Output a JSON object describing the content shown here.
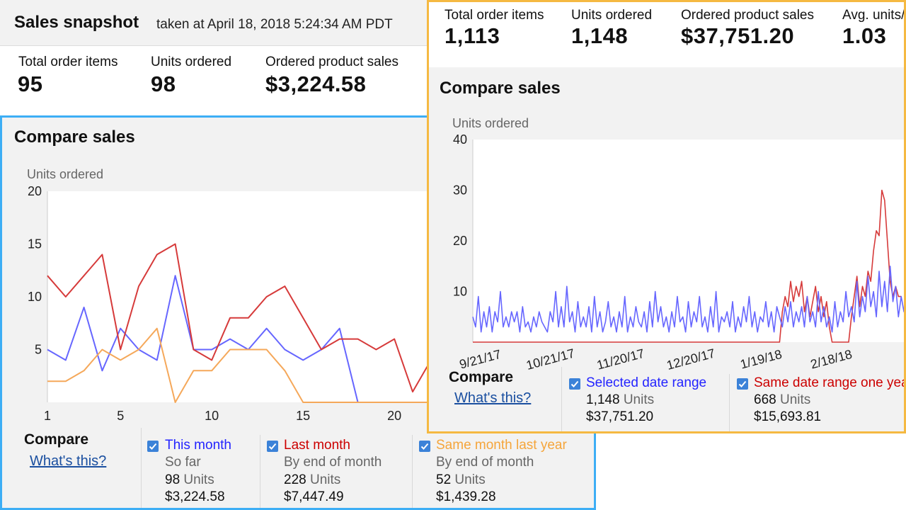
{
  "left": {
    "snapshot_title": "Sales snapshot",
    "snapshot_subtitle": "taken at April 18, 2018 5:24:34 AM PDT",
    "metrics": [
      {
        "label": "Total order items",
        "value": "95"
      },
      {
        "label": "Units ordered",
        "value": "98"
      },
      {
        "label": "Ordered product sales",
        "value": "$3,224.58"
      }
    ],
    "compare_title": "Compare sales",
    "compare_label": "Compare",
    "whats_this": "What's this?",
    "series_options": [
      {
        "label": "This month",
        "sub": "So far",
        "units": "98",
        "units_word": "Units",
        "sales": "$3,224.58",
        "color": "#2424ff"
      },
      {
        "label": "Last month",
        "sub": "By end of month",
        "units": "228",
        "units_word": "Units",
        "sales": "$7,447.49",
        "color": "#cc0000"
      },
      {
        "label": "Same month last year",
        "sub": "By end of month",
        "units": "52",
        "units_word": "Units",
        "sales": "$1,439.28",
        "color": "#f5a53b"
      }
    ]
  },
  "right": {
    "metrics": [
      {
        "label": "Total order items",
        "value": "1,113"
      },
      {
        "label": "Units ordered",
        "value": "1,148"
      },
      {
        "label": "Ordered product sales",
        "value": "$37,751.20"
      },
      {
        "label": "Avg. units/",
        "value": "1.03"
      }
    ],
    "compare_title": "Compare sales",
    "compare_label": "Compare",
    "whats_this": "What's this?",
    "series_options": [
      {
        "label": "Selected date range",
        "units": "1,148",
        "units_word": "Units",
        "sales": "$37,751.20",
        "color": "#2424ff"
      },
      {
        "label": "Same date range one yea",
        "units": "668",
        "units_word": "Units",
        "sales": "$15,693.81",
        "color": "#cc0000"
      }
    ]
  },
  "chart_data": [
    {
      "type": "line",
      "ylabel": "Units ordered",
      "ylim": [
        0,
        20
      ],
      "yticks": [
        5,
        10,
        15,
        20
      ],
      "xlim": [
        1,
        22
      ],
      "xticks": [
        1,
        5,
        10,
        15,
        20
      ],
      "grid": false,
      "series": [
        {
          "name": "This month",
          "color": "#6666ff",
          "x": [
            1,
            2,
            3,
            4,
            5,
            6,
            7,
            8,
            9,
            10,
            11,
            12,
            13,
            14,
            15,
            16,
            17,
            18
          ],
          "values": [
            5,
            4,
            9,
            3,
            7,
            5,
            4,
            12,
            5,
            5,
            6,
            5,
            7,
            5,
            4,
            5,
            7,
            0
          ]
        },
        {
          "name": "Last month",
          "color": "#d63a3a",
          "x": [
            1,
            2,
            3,
            4,
            5,
            6,
            7,
            8,
            9,
            10,
            11,
            12,
            13,
            14,
            15,
            16,
            17,
            18,
            19,
            20,
            21,
            22
          ],
          "values": [
            12,
            10,
            12,
            14,
            5,
            11,
            14,
            15,
            5,
            4,
            8,
            8,
            10,
            11,
            8,
            5,
            6,
            6,
            5,
            6,
            1,
            4
          ]
        },
        {
          "name": "Same month last year",
          "color": "#f5a85a",
          "x": [
            1,
            2,
            3,
            4,
            5,
            6,
            7,
            8,
            9,
            10,
            11,
            12,
            13,
            14,
            15,
            16,
            17,
            18,
            19,
            20,
            21,
            22
          ],
          "values": [
            2,
            2,
            3,
            5,
            4,
            5,
            7,
            0,
            3,
            3,
            5,
            5,
            5,
            3,
            0,
            0,
            0,
            0,
            0,
            0,
            0,
            0
          ]
        }
      ]
    },
    {
      "type": "line",
      "ylabel": "Units ordered",
      "ylim": [
        0,
        40
      ],
      "yticks": [
        10,
        20,
        30,
        40
      ],
      "xticks": [
        "9/21/17",
        "10/21/17",
        "11/20/17",
        "12/20/17",
        "1/19/18",
        "2/18/18"
      ],
      "grid": false,
      "series": [
        {
          "name": "Selected date range",
          "color": "#6666ff",
          "values": [
            5,
            3,
            9,
            2,
            6,
            3,
            7,
            2,
            6,
            4,
            10,
            3,
            5,
            3,
            6,
            4,
            6,
            2,
            7,
            3,
            4,
            2,
            5,
            3,
            6,
            4,
            3,
            2,
            6,
            4,
            10,
            3,
            7,
            3,
            11,
            4,
            6,
            2,
            8,
            3,
            5,
            3,
            7,
            2,
            9,
            3,
            6,
            2,
            4,
            8,
            3,
            5,
            2,
            6,
            3,
            9,
            2,
            5,
            3,
            7,
            4,
            3,
            6,
            2,
            8,
            3,
            10,
            4,
            7,
            3,
            5,
            2,
            6,
            3,
            9,
            4,
            5,
            2,
            8,
            3,
            6,
            4,
            9,
            3,
            5,
            2,
            7,
            3,
            10,
            2,
            5,
            4,
            6,
            3,
            8,
            2,
            5,
            3,
            7,
            4,
            9,
            3,
            6,
            2,
            5,
            4,
            8,
            3,
            6,
            2,
            7,
            5,
            3,
            7,
            4,
            8,
            3,
            6,
            4,
            7,
            3,
            9,
            4,
            6,
            3,
            10,
            4,
            7,
            3,
            5,
            2,
            8,
            3,
            6,
            4,
            10,
            5,
            7,
            4,
            12,
            5,
            9,
            6,
            13,
            7,
            10,
            5,
            14,
            7,
            12,
            6,
            15,
            8,
            11,
            5,
            9,
            6,
            11
          ]
        },
        {
          "name": "Same date range one year",
          "color": "#d63a3a",
          "values": [
            0,
            0,
            0,
            0,
            0,
            0,
            0,
            0,
            0,
            0,
            0,
            0,
            0,
            0,
            0,
            0,
            0,
            0,
            0,
            0,
            0,
            0,
            0,
            0,
            0,
            0,
            0,
            0,
            0,
            0,
            0,
            0,
            0,
            0,
            0,
            0,
            0,
            0,
            0,
            0,
            0,
            0,
            0,
            0,
            0,
            0,
            0,
            0,
            0,
            0,
            0,
            0,
            0,
            0,
            0,
            0,
            0,
            0,
            0,
            0,
            0,
            0,
            0,
            0,
            0,
            0,
            0,
            0,
            0,
            0,
            0,
            0,
            0,
            0,
            0,
            0,
            0,
            0,
            0,
            0,
            0,
            0,
            0,
            0,
            0,
            0,
            0,
            0,
            0,
            0,
            0,
            0,
            0,
            0,
            0,
            0,
            0,
            0,
            0,
            0,
            0,
            0,
            0,
            0,
            0,
            0,
            0,
            0,
            0,
            0,
            0,
            0,
            6,
            9,
            7,
            12,
            8,
            11,
            9,
            12,
            6,
            9,
            5,
            8,
            11,
            6,
            9,
            5,
            8,
            3,
            0,
            0,
            0,
            0,
            0,
            0,
            0,
            5,
            9,
            13,
            7,
            11,
            9,
            14,
            12,
            18,
            22,
            21,
            30,
            28,
            20,
            12,
            9,
            11,
            9,
            9
          ]
        }
      ]
    }
  ]
}
